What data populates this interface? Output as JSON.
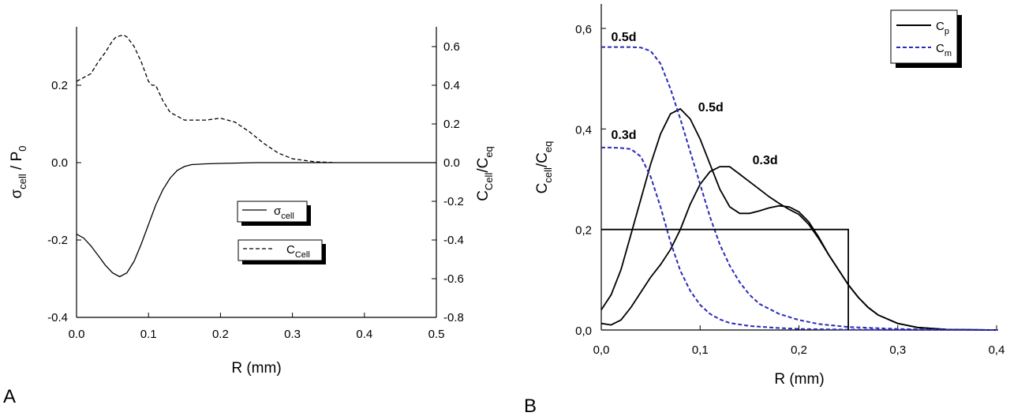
{
  "figure": {
    "panel_a_label": "A",
    "panel_b_label": "B"
  },
  "chart_data": [
    {
      "panel": "A",
      "type": "line",
      "xlabel": "R (mm)",
      "ylabel_left": {
        "main": "σ",
        "sub1": "cell",
        "mid": " / P",
        "sub2": "0"
      },
      "ylabel_right": {
        "main": "C",
        "sub1": "Cell",
        "mid": "/C",
        "sub2": "eq"
      },
      "xlim": [
        0,
        0.5
      ],
      "ylim_left": [
        -0.4,
        0.35
      ],
      "ylim_right": [
        -0.8,
        0.7
      ],
      "x_ticks": [
        "0.0",
        "0.1",
        "0.2",
        "0.3",
        "0.4",
        "0.5"
      ],
      "y_ticks_left": [
        "-0.4",
        "-0.2",
        "0.0",
        "0.2"
      ],
      "y_ticks_left_values": [
        -0.4,
        -0.2,
        0.0,
        0.2
      ],
      "y_ticks_right": [
        "-0.8",
        "-0.6",
        "-0.4",
        "-0.2",
        "0.0",
        "0.2",
        "0.4",
        "0.6"
      ],
      "y_ticks_right_values": [
        -0.8,
        -0.6,
        -0.4,
        -0.2,
        0.0,
        0.2,
        0.4,
        0.6
      ],
      "legend": [
        {
          "main": "σ",
          "sub": "cell",
          "style": "solid"
        },
        {
          "main": "C",
          "sub": "Cell",
          "style": "dashed"
        }
      ],
      "series": [
        {
          "name": "σcell",
          "axis": "left",
          "style": "solid",
          "color": "#000000",
          "x": [
            0,
            0.01,
            0.02,
            0.03,
            0.04,
            0.05,
            0.06,
            0.07,
            0.08,
            0.09,
            0.1,
            0.11,
            0.12,
            0.13,
            0.14,
            0.15,
            0.16,
            0.18,
            0.2,
            0.25,
            0.3,
            0.4,
            0.5
          ],
          "y": [
            -0.185,
            -0.195,
            -0.215,
            -0.24,
            -0.265,
            -0.285,
            -0.295,
            -0.285,
            -0.255,
            -0.21,
            -0.16,
            -0.11,
            -0.07,
            -0.04,
            -0.02,
            -0.01,
            -0.005,
            -0.003,
            -0.002,
            0,
            0,
            0,
            0
          ]
        },
        {
          "name": "CCell",
          "axis": "right",
          "style": "dashed",
          "color": "#000000",
          "x": [
            0,
            0.01,
            0.02,
            0.03,
            0.04,
            0.05,
            0.055,
            0.065,
            0.07,
            0.08,
            0.09,
            0.1,
            0.105,
            0.11,
            0.12,
            0.13,
            0.14,
            0.15,
            0.18,
            0.2,
            0.22,
            0.24,
            0.26,
            0.28,
            0.3,
            0.33,
            0.36
          ],
          "y": [
            0.42,
            0.44,
            0.46,
            0.52,
            0.57,
            0.63,
            0.65,
            0.66,
            0.65,
            0.6,
            0.52,
            0.42,
            0.4,
            0.4,
            0.32,
            0.26,
            0.24,
            0.22,
            0.22,
            0.23,
            0.21,
            0.16,
            0.1,
            0.05,
            0.02,
            0.005,
            0.0
          ]
        }
      ]
    },
    {
      "panel": "B",
      "type": "line",
      "xlabel": "R (mm)",
      "ylabel": {
        "main": "C",
        "sub1": "cell",
        "mid": "/C",
        "sub2": "eq"
      },
      "xlim": [
        0,
        0.4
      ],
      "ylim": [
        0,
        0.6
      ],
      "x_ticks": [
        "0,0",
        "0,1",
        "0,2",
        "0,3",
        "0,4"
      ],
      "x_ticks_values": [
        0,
        0.1,
        0.2,
        0.3,
        0.4
      ],
      "y_ticks": [
        "0,0",
        "0,2",
        "0,4",
        "0,6"
      ],
      "y_ticks_values": [
        0,
        0.2,
        0.4,
        0.6
      ],
      "legend": [
        {
          "main": "C",
          "sub": "p",
          "style": "solid",
          "color": "#000000"
        },
        {
          "main": "C",
          "sub": "m",
          "style": "dashed",
          "color": "#2a2ab8"
        }
      ],
      "annotations": [
        {
          "text": "0.5d",
          "x": 0.01,
          "y": 0.575
        },
        {
          "text": "0.3d",
          "x": 0.01,
          "y": 0.38
        },
        {
          "text": "0.5d",
          "x": 0.098,
          "y": 0.435
        },
        {
          "text": "0.3d",
          "x": 0.153,
          "y": 0.33
        }
      ],
      "series": [
        {
          "name": "Cp 0.5d",
          "style": "solid",
          "color": "#000000",
          "x": [
            0,
            0.01,
            0.02,
            0.03,
            0.04,
            0.05,
            0.06,
            0.07,
            0.08,
            0.09,
            0.1,
            0.11,
            0.12,
            0.13,
            0.14,
            0.15,
            0.16,
            0.17,
            0.18,
            0.19,
            0.2,
            0.21,
            0.22,
            0.23,
            0.24,
            0.25,
            0.26,
            0.27,
            0.28,
            0.3,
            0.32,
            0.35,
            0.4
          ],
          "y": [
            0.04,
            0.07,
            0.12,
            0.19,
            0.26,
            0.33,
            0.39,
            0.43,
            0.44,
            0.42,
            0.38,
            0.33,
            0.28,
            0.245,
            0.232,
            0.232,
            0.237,
            0.243,
            0.247,
            0.245,
            0.235,
            0.215,
            0.185,
            0.15,
            0.12,
            0.09,
            0.065,
            0.045,
            0.03,
            0.013,
            0.005,
            0.001,
            0
          ]
        },
        {
          "name": "Cp 0.3d",
          "style": "solid",
          "color": "#000000",
          "x": [
            0,
            0.01,
            0.02,
            0.03,
            0.04,
            0.05,
            0.06,
            0.07,
            0.08,
            0.09,
            0.1,
            0.11,
            0.12,
            0.13,
            0.14,
            0.15,
            0.16,
            0.17,
            0.18,
            0.19,
            0.2,
            0.21,
            0.22,
            0.23,
            0.24,
            0.25,
            0.26,
            0.27,
            0.28,
            0.3,
            0.32,
            0.35,
            0.4
          ],
          "y": [
            0.013,
            0.01,
            0.02,
            0.045,
            0.075,
            0.105,
            0.13,
            0.16,
            0.2,
            0.25,
            0.29,
            0.315,
            0.325,
            0.325,
            0.31,
            0.295,
            0.28,
            0.265,
            0.252,
            0.24,
            0.23,
            0.21,
            0.182,
            0.15,
            0.12,
            0.09,
            0.065,
            0.045,
            0.03,
            0.013,
            0.005,
            0.001,
            0
          ]
        },
        {
          "name": "Cm 0.5d",
          "style": "dashed",
          "color": "#2a2ab8",
          "x": [
            0,
            0.01,
            0.02,
            0.03,
            0.04,
            0.05,
            0.06,
            0.07,
            0.08,
            0.09,
            0.1,
            0.11,
            0.12,
            0.13,
            0.14,
            0.15,
            0.16,
            0.18,
            0.2,
            0.22,
            0.25,
            0.3,
            0.35,
            0.4
          ],
          "y": [
            0.563,
            0.563,
            0.563,
            0.563,
            0.562,
            0.555,
            0.53,
            0.48,
            0.42,
            0.355,
            0.29,
            0.225,
            0.17,
            0.128,
            0.095,
            0.07,
            0.052,
            0.032,
            0.02,
            0.012,
            0.006,
            0.002,
            0.0005,
            0
          ]
        },
        {
          "name": "Cm 0.3d",
          "style": "dashed",
          "color": "#2a2ab8",
          "x": [
            0,
            0.01,
            0.02,
            0.03,
            0.04,
            0.05,
            0.06,
            0.07,
            0.08,
            0.09,
            0.1,
            0.11,
            0.12,
            0.13,
            0.15,
            0.18,
            0.2,
            0.25,
            0.3,
            0.35,
            0.4
          ],
          "y": [
            0.363,
            0.363,
            0.362,
            0.36,
            0.345,
            0.305,
            0.245,
            0.175,
            0.118,
            0.078,
            0.05,
            0.032,
            0.021,
            0.014,
            0.008,
            0.004,
            0.002,
            0.0008,
            0.0003,
            0.0001,
            0
          ]
        },
        {
          "name": "initial step",
          "style": "solid",
          "color": "#000000",
          "x": [
            0,
            0.25,
            0.25
          ],
          "y": [
            0.2,
            0.2,
            0
          ]
        }
      ]
    }
  ]
}
